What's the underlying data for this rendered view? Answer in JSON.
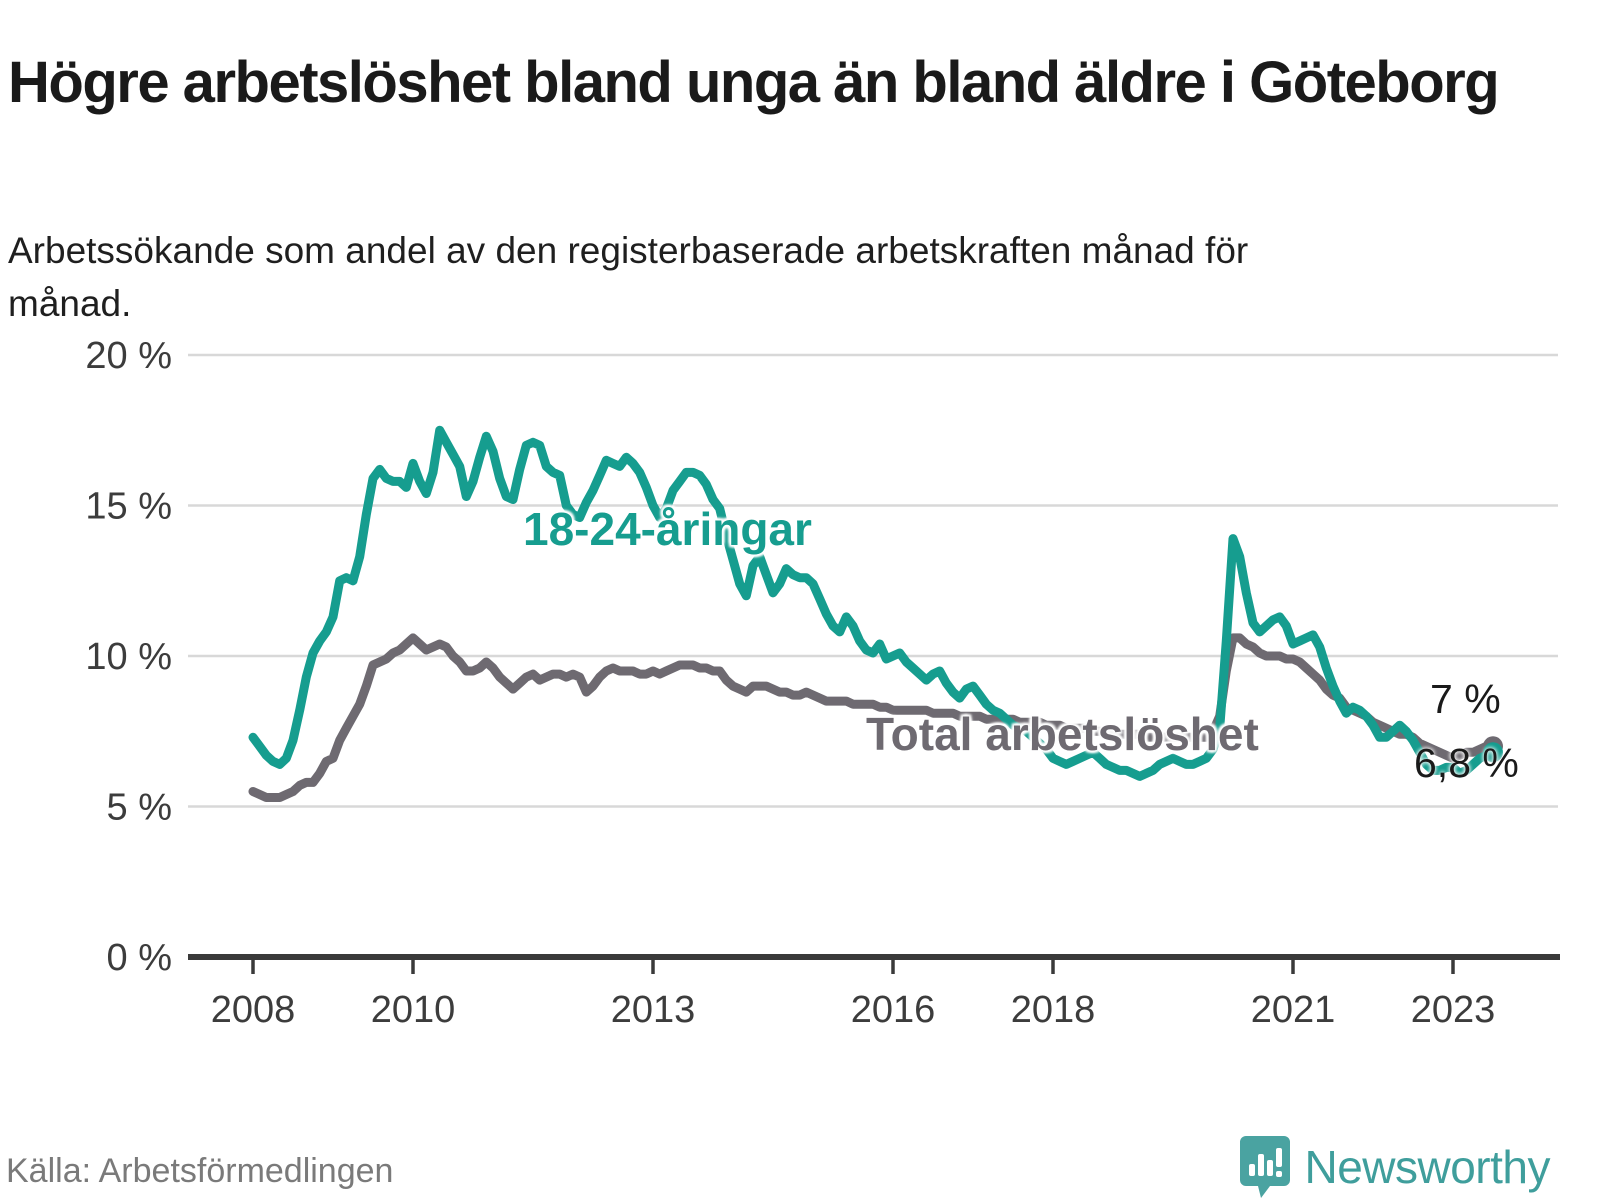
{
  "header": {
    "title": "Högre arbetslöshet bland unga än bland äldre i Göteborg",
    "subtitle": "Arbetssökande som andel av den registerbaserade arbetskraften månad för månad."
  },
  "footer": {
    "source": "Källa: Arbetsförmedlingen",
    "brand": "Newsworthy",
    "brand_color": "#3f9e9c",
    "logo_color": "#4aa3a1"
  },
  "chart_data": {
    "type": "line",
    "title": "Högre arbetslöshet bland unga än bland äldre i Göteborg",
    "xlabel": "",
    "ylabel": "",
    "x_unit": "month",
    "x_start_year": 2008,
    "x_end_year_fraction": 2023.5,
    "ylim": [
      0,
      20
    ],
    "grid": "horizontal",
    "y_ticks": [
      "0 %",
      "5 %",
      "10 %",
      "15 %",
      "20 %"
    ],
    "x_ticks": [
      "2008",
      "2010",
      "2013",
      "2016",
      "2018",
      "2021",
      "2023"
    ],
    "x_tick_years": [
      2008,
      2010,
      2013,
      2016,
      2018,
      2021,
      2023
    ],
    "annotations": [
      {
        "text": "18-24-åringar",
        "series": 1
      },
      {
        "text": "Total arbetslöshet",
        "series": 0
      }
    ],
    "series": [
      {
        "name": "Total arbetslöshet",
        "color": "#6e6a71",
        "end_label": "7 %",
        "end_value": 7.0,
        "values": [
          5.5,
          5.4,
          5.3,
          5.3,
          5.3,
          5.4,
          5.5,
          5.7,
          5.8,
          5.8,
          6.1,
          6.5,
          6.6,
          7.2,
          7.6,
          8.0,
          8.4,
          9.0,
          9.7,
          9.8,
          9.9,
          10.1,
          10.2,
          10.4,
          10.6,
          10.4,
          10.2,
          10.3,
          10.4,
          10.3,
          10.0,
          9.8,
          9.5,
          9.5,
          9.6,
          9.8,
          9.6,
          9.3,
          9.1,
          8.9,
          9.1,
          9.3,
          9.4,
          9.2,
          9.3,
          9.4,
          9.4,
          9.3,
          9.4,
          9.3,
          8.8,
          9.0,
          9.3,
          9.5,
          9.6,
          9.5,
          9.5,
          9.5,
          9.4,
          9.4,
          9.5,
          9.4,
          9.5,
          9.6,
          9.7,
          9.7,
          9.7,
          9.6,
          9.6,
          9.5,
          9.5,
          9.2,
          9.0,
          8.9,
          8.8,
          9.0,
          9.0,
          9.0,
          8.9,
          8.8,
          8.8,
          8.7,
          8.7,
          8.8,
          8.7,
          8.6,
          8.5,
          8.5,
          8.5,
          8.5,
          8.4,
          8.4,
          8.4,
          8.4,
          8.3,
          8.3,
          8.2,
          8.2,
          8.2,
          8.2,
          8.2,
          8.2,
          8.1,
          8.1,
          8.1,
          8.1,
          8.0,
          8.0,
          8.0,
          8.0,
          7.9,
          7.9,
          7.9,
          7.9,
          7.9,
          7.8,
          7.8,
          7.8,
          7.8,
          7.7,
          7.7,
          7.7,
          7.6,
          7.6,
          7.6,
          7.6,
          7.5,
          7.5,
          7.5,
          7.5,
          7.4,
          7.4,
          7.4,
          7.4,
          7.3,
          7.3,
          7.3,
          7.3,
          7.3,
          7.3,
          7.3,
          7.3,
          7.3,
          7.3,
          7.5,
          8.0,
          9.5,
          10.6,
          10.6,
          10.4,
          10.3,
          10.1,
          10.0,
          10.0,
          10.0,
          9.9,
          9.9,
          9.8,
          9.6,
          9.4,
          9.2,
          8.9,
          8.7,
          8.6,
          8.3,
          8.2,
          8.1,
          8.0,
          7.8,
          7.7,
          7.6,
          7.5,
          7.4,
          7.4,
          7.3,
          7.1,
          7.0,
          6.9,
          6.8,
          6.7,
          6.6,
          6.7,
          6.8,
          6.8,
          6.9,
          7.0,
          7.0
        ]
      },
      {
        "name": "18-24-åringar",
        "color": "#169d8f",
        "end_label": "6,8 %",
        "end_value": 6.8,
        "values": [
          7.3,
          7.0,
          6.7,
          6.5,
          6.4,
          6.6,
          7.2,
          8.2,
          9.3,
          10.1,
          10.5,
          10.8,
          11.3,
          12.5,
          12.6,
          12.5,
          13.3,
          14.7,
          15.9,
          16.2,
          15.9,
          15.8,
          15.8,
          15.6,
          16.4,
          15.8,
          15.4,
          16.1,
          17.5,
          17.1,
          16.7,
          16.3,
          15.3,
          15.8,
          16.6,
          17.3,
          16.8,
          15.9,
          15.3,
          15.2,
          16.2,
          17.0,
          17.1,
          17.0,
          16.3,
          16.1,
          16.0,
          15.0,
          14.7,
          14.6,
          15.1,
          15.5,
          16.0,
          16.5,
          16.4,
          16.3,
          16.6,
          16.4,
          16.1,
          15.6,
          15.0,
          14.6,
          14.9,
          15.5,
          15.8,
          16.1,
          16.1,
          16.0,
          15.7,
          15.2,
          14.9,
          14.0,
          13.2,
          12.4,
          12.0,
          13.0,
          13.3,
          12.7,
          12.1,
          12.4,
          12.9,
          12.7,
          12.6,
          12.6,
          12.4,
          11.9,
          11.4,
          11.0,
          10.8,
          11.3,
          11.0,
          10.5,
          10.2,
          10.1,
          10.4,
          9.9,
          10.0,
          10.1,
          9.8,
          9.6,
          9.4,
          9.2,
          9.4,
          9.5,
          9.1,
          8.8,
          8.6,
          8.9,
          9.0,
          8.7,
          8.4,
          8.2,
          8.1,
          7.9,
          7.7,
          7.6,
          7.5,
          7.3,
          7.1,
          6.9,
          6.6,
          6.5,
          6.4,
          6.5,
          6.6,
          6.7,
          6.8,
          6.6,
          6.4,
          6.3,
          6.2,
          6.2,
          6.1,
          6.0,
          6.1,
          6.2,
          6.4,
          6.5,
          6.6,
          6.5,
          6.4,
          6.4,
          6.5,
          6.6,
          6.9,
          7.6,
          10.5,
          13.9,
          13.3,
          12.1,
          11.1,
          10.8,
          11.0,
          11.2,
          11.3,
          11.0,
          10.4,
          10.5,
          10.6,
          10.7,
          10.3,
          9.6,
          9.0,
          8.5,
          8.1,
          8.3,
          8.2,
          8.0,
          7.7,
          7.3,
          7.3,
          7.5,
          7.7,
          7.5,
          7.2,
          6.8,
          6.4,
          6.2,
          6.2,
          6.3,
          6.3,
          6.1,
          6.2,
          6.4,
          6.6,
          6.7,
          6.8
        ]
      }
    ]
  }
}
